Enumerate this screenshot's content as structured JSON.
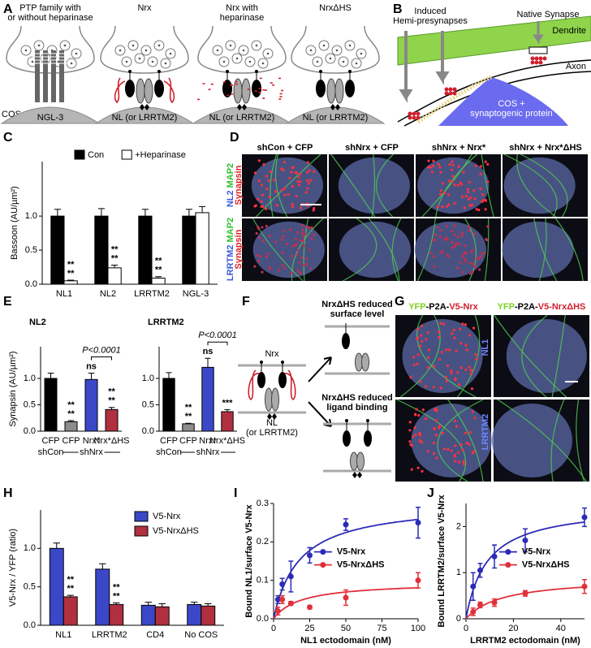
{
  "panel_a": {
    "letter": "A",
    "cos": "COS",
    "cells": [
      {
        "title": [
          "PTP family with",
          "or without heparinase"
        ],
        "bottom": "NGL-3"
      },
      {
        "title": [
          "Nrx"
        ],
        "bottom": "NL (or LRRTM2)"
      },
      {
        "title": [
          "Nrx with",
          "heparinase"
        ],
        "bottom": "NL (or LRRTM2)"
      },
      {
        "title": [
          "NrxΔHS"
        ],
        "bottom": "NL (or LRRTM2)"
      }
    ]
  },
  "panel_b": {
    "letter": "B",
    "induced": [
      "Induced",
      "Hemi-presynapses"
    ],
    "native": "Native  Synapse",
    "dendrite": "Dendrite",
    "axon": "Axon",
    "cos": [
      "COS +",
      "synaptogenic protein"
    ]
  },
  "panel_c": {
    "letter": "C",
    "chart": {
      "type": "bar",
      "y_label": "Bassoon (AU/µm²)",
      "categories": [
        "NL1",
        "NL2",
        "LRRTM2",
        "NGL-3"
      ],
      "ylim": [
        0,
        1.8
      ],
      "yticks": [
        {
          "value": 0,
          "label": "0.0"
        },
        {
          "value": 0.5,
          "label": "0.5"
        },
        {
          "value": 1,
          "label": "1.0"
        }
      ],
      "legend": "top",
      "series": [
        {
          "name": "Con",
          "color": "#000000",
          "values": [
            1.0,
            1.0,
            1.0,
            1.0
          ],
          "errors": [
            0.1,
            0.11,
            0.1,
            0.1
          ]
        },
        {
          "name": "+Heparinase",
          "color": "#ffffff",
          "values": [
            0.05,
            0.24,
            0.09,
            1.05
          ],
          "errors": [
            0.01,
            0.04,
            0.02,
            0.09
          ],
          "stars": [
            [
              "**",
              "**"
            ],
            [
              "**",
              "**"
            ],
            [
              "**",
              "**"
            ],
            null
          ]
        }
      ]
    }
  },
  "panel_d": {
    "letter": "D",
    "columns": [
      "shCon + CFP",
      "shNrx + CFP",
      "shNrx + Nrx*",
      "shNrx + Nrx*ΔHS"
    ],
    "rows": [
      {
        "labels": [
          {
            "text": "NL2",
            "color": "#3b5bdb"
          },
          {
            "text": "MAP2",
            "color": "#2fbf2f"
          },
          {
            "text": "Synapsin",
            "color": "#e02020"
          }
        ]
      },
      {
        "labels": [
          {
            "text": "LRRTM2",
            "color": "#3b5bdb"
          },
          {
            "text": "MAP2",
            "color": "#2fbf2f"
          },
          {
            "text": "Synapsin",
            "color": "#e02020"
          }
        ]
      }
    ]
  },
  "panel_e": {
    "letter": "E",
    "charts": [
      {
        "type": "bar",
        "title": "NL2",
        "y_label": "Synapsin (AU/µm²)",
        "categories": [
          "CFP",
          "CFP",
          "Nrx*",
          "Nrx*ΔHS"
        ],
        "groups": [
          "shCon",
          "shNrx"
        ],
        "ylim": [
          0,
          1.6
        ],
        "yticks": [
          {
            "value": 0,
            "label": "0.0"
          },
          {
            "value": 0.5,
            "label": "0.5"
          },
          {
            "value": 1,
            "label": "1.0"
          }
        ],
        "series": [
          {
            "colors": [
              "#000000",
              "#8c8c8c",
              "#3a48c8",
              "#b0303f"
            ],
            "values": [
              1.0,
              0.18,
              0.98,
              0.41
            ],
            "errors": [
              0.1,
              0.02,
              0.12,
              0.04
            ],
            "stars": [
              null,
              [
                "**",
                "**"
              ],
              [
                "ns"
              ],
              [
                "**",
                "**"
              ]
            ]
          }
        ],
        "bracket": "P<0.0001"
      },
      {
        "type": "bar",
        "title": "LRRTM2",
        "categories": [
          "CFP",
          "CFP",
          "Nrx*",
          "Nrx*ΔHS"
        ],
        "groups": [
          "shCon",
          "shNrx"
        ],
        "ylim": [
          0,
          1.6
        ],
        "yticks": [
          {
            "value": 0,
            "label": "0.0"
          },
          {
            "value": 0.5,
            "label": "0.5"
          },
          {
            "value": 1,
            "label": "1.0"
          }
        ],
        "series": [
          {
            "colors": [
              "#000000",
              "#8c8c8c",
              "#3a48c8",
              "#b0303f"
            ],
            "values": [
              1.0,
              0.14,
              1.21,
              0.37
            ],
            "errors": [
              0.11,
              0.01,
              0.17,
              0.04
            ],
            "stars": [
              null,
              [
                "**",
                "**"
              ],
              [
                "ns"
              ],
              [
                "***"
              ]
            ]
          }
        ],
        "bracket": "P<0.0001"
      }
    ]
  },
  "panel_f": {
    "letter": "F",
    "nrx": "Nrx",
    "nl": [
      "NL",
      "(or LRRTM2)"
    ],
    "top": [
      "NrxΔHS reduced",
      "surface level"
    ],
    "bottom": [
      "NrxΔHS reduced",
      "ligand binding"
    ]
  },
  "panel_g": {
    "letter": "G",
    "columns": [
      [
        {
          "text": "YFP",
          "color": "#7ed321"
        },
        {
          "text": "-P2A-",
          "color": "#000000"
        },
        {
          "text": "V5-Nrx",
          "color": "#d0202e"
        }
      ],
      [
        {
          "text": "YFP",
          "color": "#7ed321"
        },
        {
          "text": "-P2A-",
          "color": "#000000"
        },
        {
          "text": "V5-NrxΔHS",
          "color": "#d0202e"
        }
      ]
    ],
    "rows": [
      "NL1",
      "LRRTM2"
    ]
  },
  "panel_h": {
    "letter": "H",
    "chart": {
      "type": "bar",
      "y_label": "V5-Nrx / YFP (ratio)",
      "categories": [
        "NL1",
        "LRRTM2",
        "CD4",
        "No COS"
      ],
      "ylim": [
        0,
        1.5
      ],
      "yticks": [
        {
          "value": 0,
          "label": "0.0"
        },
        {
          "value": 0.5,
          "label": "0.5"
        },
        {
          "value": 1,
          "label": "1.0"
        }
      ],
      "legend": "top-right",
      "series": [
        {
          "name": "V5-Nrx",
          "color": "#3a48c8",
          "values": [
            1.0,
            0.73,
            0.26,
            0.27
          ],
          "errors": [
            0.07,
            0.07,
            0.04,
            0.03
          ]
        },
        {
          "name": "V5-NrxΔHS",
          "color": "#b0303f",
          "values": [
            0.37,
            0.27,
            0.24,
            0.25
          ],
          "errors": [
            0.02,
            0.02,
            0.04,
            0.03
          ],
          "stars": [
            [
              "**",
              "**"
            ],
            [
              "**",
              "**"
            ],
            null,
            null
          ]
        }
      ]
    }
  },
  "panel_i": {
    "letter": "I",
    "chart": {
      "type": "scatter",
      "x_label": "NL1 ectodomain (nM)",
      "y_label": "Bound NL1/surface V5-Nrx",
      "xlim": [
        0,
        100
      ],
      "xticks": [
        0,
        25,
        50,
        75,
        100
      ],
      "ylim": [
        0,
        0.3
      ],
      "yticks": [
        {
          "value": 0,
          "label": "0.0"
        },
        {
          "value": 0.1,
          "label": "0.1"
        },
        {
          "value": 0.2,
          "label": "0.2"
        },
        {
          "value": 0.3,
          "label": "0.3"
        }
      ],
      "series": [
        {
          "name": "V5-Nrx",
          "color": "#2b2bb8",
          "x": [
            3,
            6,
            12,
            25,
            50,
            100
          ],
          "values": [
            0.05,
            0.09,
            0.11,
            0.165,
            0.245,
            0.25
          ],
          "errors": [
            0.01,
            0.015,
            0.04,
            0.02,
            0.015,
            0.04
          ]
        },
        {
          "name": "V5-NrxΔHS",
          "color": "#e0303a",
          "x": [
            3,
            6,
            12,
            25,
            50,
            100
          ],
          "values": [
            0.02,
            0.05,
            0.04,
            0.03,
            0.055,
            0.1
          ],
          "errors": [
            0.01,
            0.01,
            0.005,
            0.004,
            0.02,
            0.02
          ]
        }
      ]
    }
  },
  "panel_j": {
    "letter": "J",
    "chart": {
      "type": "scatter",
      "x_label": "LRRTM2 ectodomain (nM)",
      "y_label": "Bound LRRTM2/surface V5-Nrx",
      "xlim": [
        0,
        50
      ],
      "xticks": [
        0,
        20,
        40
      ],
      "ylim": [
        0,
        2.5
      ],
      "yticks": [
        0,
        1,
        2
      ],
      "series": [
        {
          "name": "V5-Nrx",
          "color": "#2b2bb8",
          "x": [
            3,
            6,
            12,
            25,
            50
          ],
          "values": [
            0.7,
            1.05,
            1.35,
            1.7,
            2.2
          ],
          "errors": [
            0.3,
            0.15,
            0.25,
            0.25,
            0.2
          ]
        },
        {
          "name": "V5-NrxΔHS",
          "color": "#e0303a",
          "x": [
            3,
            6,
            12,
            25,
            50
          ],
          "values": [
            0.15,
            0.3,
            0.35,
            0.55,
            0.7
          ],
          "errors": [
            0.08,
            0.06,
            0.08,
            0.06,
            0.15
          ]
        }
      ]
    }
  }
}
